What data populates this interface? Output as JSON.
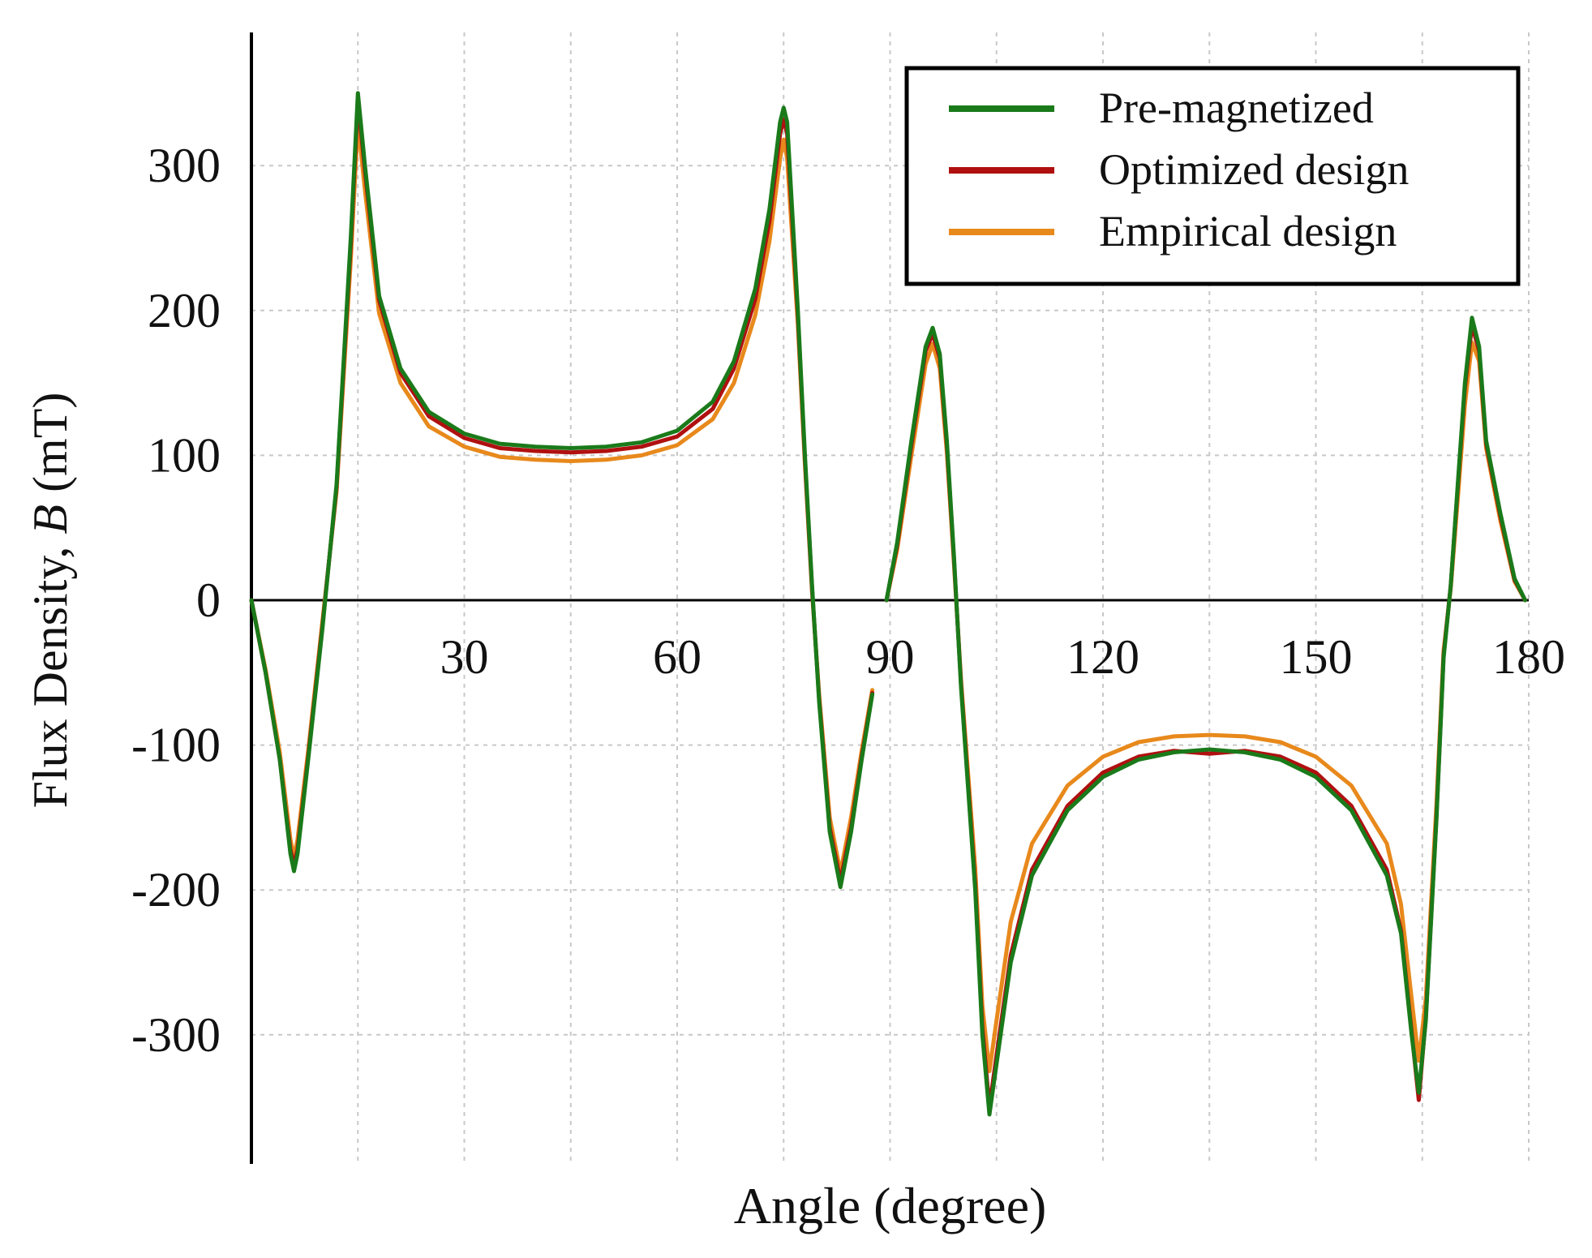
{
  "chart_data": {
    "type": "line",
    "xlabel": "Angle (degree)",
    "ylabel_prefix": "Flux Density, ",
    "ylabel_symbol": "B",
    "ylabel_suffix": " (mT)",
    "xlim": [
      0,
      180
    ],
    "ylim": [
      -390,
      390
    ],
    "xticks": [
      30,
      60,
      90,
      120,
      150,
      180
    ],
    "yticks": [
      300,
      200,
      100,
      0,
      -100,
      -200,
      -300
    ],
    "xgrid": [
      15,
      30,
      45,
      60,
      75,
      90,
      105,
      120,
      135,
      150,
      165,
      180
    ],
    "ygrid": [
      -300,
      -200,
      -100,
      100,
      200,
      300
    ],
    "grid": true,
    "legend_position": "top-right",
    "series": [
      {
        "name": "Pre-magnetized",
        "color": "#1a7a1a",
        "segments": [
          [
            [
              0,
              0
            ],
            [
              2,
              -50
            ],
            [
              4,
              -110
            ],
            [
              5.5,
              -175
            ],
            [
              6,
              -187
            ],
            [
              6.5,
              -175
            ],
            [
              8,
              -110
            ],
            [
              10,
              -20
            ],
            [
              12,
              80
            ],
            [
              14,
              250
            ],
            [
              15,
              350
            ],
            [
              16,
              300
            ],
            [
              18,
              210
            ],
            [
              21,
              160
            ],
            [
              25,
              130
            ],
            [
              30,
              115
            ],
            [
              35,
              108
            ],
            [
              40,
              106
            ],
            [
              45,
              105
            ],
            [
              50,
              106
            ],
            [
              55,
              109
            ],
            [
              60,
              117
            ],
            [
              65,
              137
            ],
            [
              68,
              165
            ],
            [
              71,
              215
            ],
            [
              73,
              270
            ],
            [
              74.5,
              330
            ],
            [
              75,
              340
            ],
            [
              75.5,
              330
            ],
            [
              77,
              200
            ],
            [
              78,
              100
            ],
            [
              79,
              10
            ],
            [
              80,
              -70
            ],
            [
              81.5,
              -160
            ],
            [
              83,
              -198
            ],
            [
              84.5,
              -160
            ],
            [
              86,
              -110
            ],
            [
              87.5,
              -65
            ]
          ],
          [
            [
              89.5,
              0
            ],
            [
              91,
              40
            ],
            [
              93,
              110
            ],
            [
              95,
              175
            ],
            [
              96,
              188
            ],
            [
              97,
              170
            ],
            [
              98,
              110
            ],
            [
              99,
              30
            ],
            [
              100,
              -60
            ],
            [
              102,
              -200
            ],
            [
              103,
              -300
            ],
            [
              104,
              -355
            ],
            [
              105,
              -320
            ],
            [
              107,
              -250
            ],
            [
              110,
              -190
            ],
            [
              115,
              -145
            ],
            [
              120,
              -122
            ],
            [
              125,
              -110
            ],
            [
              130,
              -105
            ],
            [
              135,
              -103
            ],
            [
              140,
              -105
            ],
            [
              145,
              -110
            ],
            [
              150,
              -122
            ],
            [
              155,
              -145
            ],
            [
              160,
              -190
            ],
            [
              162,
              -230
            ],
            [
              163.5,
              -300
            ],
            [
              164.5,
              -340
            ],
            [
              165.5,
              -290
            ],
            [
              167,
              -150
            ],
            [
              168,
              -40
            ],
            [
              169,
              10
            ],
            [
              170,
              80
            ],
            [
              171,
              150
            ],
            [
              172,
              195
            ],
            [
              173,
              175
            ],
            [
              174,
              110
            ],
            [
              176,
              60
            ],
            [
              178,
              15
            ],
            [
              179.5,
              0
            ]
          ]
        ]
      },
      {
        "name": "Optimized design",
        "color": "#b01010",
        "segments": [
          [
            [
              0,
              0
            ],
            [
              2,
              -50
            ],
            [
              4,
              -110
            ],
            [
              5.5,
              -172
            ],
            [
              6,
              -183
            ],
            [
              6.5,
              -172
            ],
            [
              8,
              -108
            ],
            [
              10,
              -18
            ],
            [
              12,
              78
            ],
            [
              14,
              245
            ],
            [
              15,
              345
            ],
            [
              16,
              296
            ],
            [
              18,
              207
            ],
            [
              21,
              157
            ],
            [
              25,
              127
            ],
            [
              30,
              112
            ],
            [
              35,
              105
            ],
            [
              40,
              103
            ],
            [
              45,
              102
            ],
            [
              50,
              103
            ],
            [
              55,
              106
            ],
            [
              60,
              113
            ],
            [
              65,
              132
            ],
            [
              68,
              160
            ],
            [
              71,
              208
            ],
            [
              73,
              262
            ],
            [
              74.5,
              322
            ],
            [
              75,
              332
            ],
            [
              75.5,
              322
            ],
            [
              77,
              196
            ],
            [
              78,
              97
            ],
            [
              79,
              8
            ],
            [
              80,
              -68
            ],
            [
              81.5,
              -157
            ],
            [
              83,
              -194
            ],
            [
              84.5,
              -157
            ],
            [
              86,
              -108
            ],
            [
              87.5,
              -64
            ]
          ],
          [
            [
              89.5,
              0
            ],
            [
              91,
              38
            ],
            [
              93,
              107
            ],
            [
              95,
              172
            ],
            [
              96,
              184
            ],
            [
              97,
              167
            ],
            [
              98,
              107
            ],
            [
              99,
              28
            ],
            [
              100,
              -58
            ],
            [
              102,
              -196
            ],
            [
              103,
              -295
            ],
            [
              104,
              -350
            ],
            [
              105,
              -314
            ],
            [
              107,
              -245
            ],
            [
              110,
              -186
            ],
            [
              115,
              -142
            ],
            [
              120,
              -119
            ],
            [
              125,
              -108
            ],
            [
              130,
              -104
            ],
            [
              135,
              -106
            ],
            [
              140,
              -104
            ],
            [
              145,
              -108
            ],
            [
              150,
              -119
            ],
            [
              155,
              -142
            ],
            [
              160,
              -186
            ],
            [
              162,
              -228
            ],
            [
              163.5,
              -298
            ],
            [
              164.5,
              -345
            ],
            [
              165.5,
              -288
            ],
            [
              167,
              -148
            ],
            [
              168,
              -38
            ],
            [
              169,
              10
            ],
            [
              170,
              78
            ],
            [
              171,
              147
            ],
            [
              172,
              190
            ],
            [
              173,
              172
            ],
            [
              174,
              108
            ],
            [
              176,
              58
            ],
            [
              178,
              14
            ],
            [
              179.5,
              0
            ]
          ]
        ]
      },
      {
        "name": "Empirical design",
        "color": "#e8891c",
        "segments": [
          [
            [
              0,
              0
            ],
            [
              2,
              -48
            ],
            [
              4,
              -105
            ],
            [
              5.5,
              -165
            ],
            [
              6,
              -178
            ],
            [
              6.5,
              -165
            ],
            [
              8,
              -104
            ],
            [
              10,
              -15
            ],
            [
              12,
              75
            ],
            [
              14,
              235
            ],
            [
              15,
              330
            ],
            [
              16,
              283
            ],
            [
              18,
              198
            ],
            [
              21,
              150
            ],
            [
              25,
              120
            ],
            [
              30,
              106
            ],
            [
              35,
              99
            ],
            [
              40,
              97
            ],
            [
              45,
              96
            ],
            [
              50,
              97
            ],
            [
              55,
              100
            ],
            [
              60,
              107
            ],
            [
              65,
              125
            ],
            [
              68,
              150
            ],
            [
              71,
              197
            ],
            [
              73,
              248
            ],
            [
              74.5,
              305
            ],
            [
              75,
              318
            ],
            [
              75.5,
              305
            ],
            [
              77,
              190
            ],
            [
              78,
              94
            ],
            [
              79,
              6
            ],
            [
              80,
              -65
            ],
            [
              81.5,
              -150
            ],
            [
              83,
              -188
            ],
            [
              84.5,
              -150
            ],
            [
              86,
              -104
            ],
            [
              87.5,
              -62
            ]
          ],
          [
            [
              89.5,
              0
            ],
            [
              91,
              35
            ],
            [
              93,
              100
            ],
            [
              95,
              163
            ],
            [
              96,
              177
            ],
            [
              97,
              160
            ],
            [
              98,
              102
            ],
            [
              99,
              25
            ],
            [
              100,
              -55
            ],
            [
              102,
              -185
            ],
            [
              103,
              -280
            ],
            [
              104,
              -325
            ],
            [
              105,
              -290
            ],
            [
              107,
              -222
            ],
            [
              110,
              -168
            ],
            [
              115,
              -128
            ],
            [
              120,
              -108
            ],
            [
              125,
              -98
            ],
            [
              130,
              -94
            ],
            [
              135,
              -93
            ],
            [
              140,
              -94
            ],
            [
              145,
              -98
            ],
            [
              150,
              -108
            ],
            [
              155,
              -128
            ],
            [
              160,
              -168
            ],
            [
              162,
              -210
            ],
            [
              163.5,
              -275
            ],
            [
              164.5,
              -318
            ],
            [
              165.5,
              -275
            ],
            [
              167,
              -140
            ],
            [
              168,
              -35
            ],
            [
              169,
              8
            ],
            [
              170,
              70
            ],
            [
              171,
              135
            ],
            [
              172,
              178
            ],
            [
              173,
              165
            ],
            [
              174,
              105
            ],
            [
              176,
              55
            ],
            [
              178,
              13
            ],
            [
              179.5,
              0
            ]
          ]
        ]
      }
    ]
  }
}
